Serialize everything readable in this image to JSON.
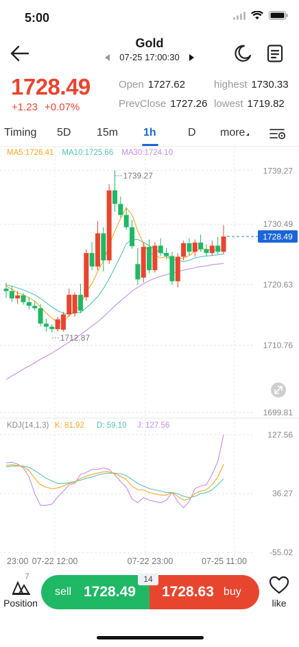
{
  "status": {
    "time": "5:00"
  },
  "header": {
    "title": "Gold",
    "datetime": "07-25 17:00:30"
  },
  "quote": {
    "price": "1728.49",
    "change": "+1.23",
    "change_pct": "+0.07%",
    "open_label": "Open",
    "open_value": "1727.62",
    "highest_label": "highest",
    "highest_value": "1730.33",
    "prevclose_label": "PrevClose",
    "prevclose_value": "1727.26",
    "lowest_label": "lowest",
    "lowest_value": "1719.82",
    "up_color": "#e8452f",
    "down_color": "#1fb865"
  },
  "tabs": [
    {
      "label": "Timing"
    },
    {
      "label": "5D"
    },
    {
      "label": "15m"
    },
    {
      "label": "1h",
      "active": true
    },
    {
      "label": "D"
    },
    {
      "label": "more"
    }
  ],
  "ma_legend": {
    "ma5": "MA5:1726.41",
    "ma10": "MA10:1725.66",
    "ma30": "MA30:1724.10",
    "ma5_color": "#f5a623",
    "ma10_color": "#4fc3b2",
    "ma30_color": "#c58be8"
  },
  "kdj_legend": {
    "name": "KDJ(14,1,3)",
    "k": "K: 81.92",
    "d": "D: 59.10",
    "j": "J: 127.56"
  },
  "bottom": {
    "position_label": "Position",
    "position_count": "7",
    "sell_label": "sell",
    "sell_price": "1728.49",
    "buy_label": "buy",
    "buy_price": "1728.63",
    "spread": "14",
    "like_label": "like"
  },
  "chart_data": {
    "type": "candlestick",
    "price_axis": {
      "ticks": [
        "1739.27",
        "1730.49",
        "1720.63",
        "1710.76",
        "1699.81"
      ],
      "ylim": [
        1699.81,
        1742.0
      ]
    },
    "current_price_label": "1728.49",
    "high_annotation": "1739.27",
    "low_annotation": "1712.87",
    "x_ticks": [
      "23:00",
      "07-22 12:00",
      "07-22 23:00",
      "07-25 11:00"
    ],
    "candles": [
      {
        "o": 1720.0,
        "h": 1721.0,
        "l": 1718.5,
        "c": 1719.6
      },
      {
        "o": 1719.6,
        "h": 1720.4,
        "l": 1717.8,
        "c": 1718.4
      },
      {
        "o": 1718.4,
        "h": 1719.6,
        "l": 1717.5,
        "c": 1718.9
      },
      {
        "o": 1718.9,
        "h": 1719.3,
        "l": 1717.4,
        "c": 1717.8
      },
      {
        "o": 1717.8,
        "h": 1718.6,
        "l": 1716.6,
        "c": 1717.2
      },
      {
        "o": 1717.2,
        "h": 1718.0,
        "l": 1716.4,
        "c": 1716.8
      },
      {
        "o": 1716.8,
        "h": 1717.5,
        "l": 1713.9,
        "c": 1714.3
      },
      {
        "o": 1714.3,
        "h": 1715.1,
        "l": 1713.0,
        "c": 1713.8
      },
      {
        "o": 1713.8,
        "h": 1714.2,
        "l": 1712.87,
        "c": 1713.4
      },
      {
        "o": 1713.4,
        "h": 1715.4,
        "l": 1713.0,
        "c": 1715.0
      },
      {
        "o": 1713.3,
        "h": 1716.2,
        "l": 1713.0,
        "c": 1715.8
      },
      {
        "o": 1715.8,
        "h": 1720.0,
        "l": 1715.4,
        "c": 1719.0
      },
      {
        "o": 1716.0,
        "h": 1719.4,
        "l": 1715.4,
        "c": 1719.0
      },
      {
        "o": 1719.0,
        "h": 1720.8,
        "l": 1716.0,
        "c": 1716.4
      },
      {
        "o": 1718.6,
        "h": 1726.4,
        "l": 1718.0,
        "c": 1725.8
      },
      {
        "o": 1725.8,
        "h": 1727.6,
        "l": 1723.0,
        "c": 1723.6
      },
      {
        "o": 1723.6,
        "h": 1731.0,
        "l": 1723.0,
        "c": 1729.0
      },
      {
        "o": 1729.0,
        "h": 1730.0,
        "l": 1722.8,
        "c": 1724.6
      },
      {
        "o": 1724.6,
        "h": 1737.0,
        "l": 1724.0,
        "c": 1736.0
      },
      {
        "o": 1736.0,
        "h": 1739.27,
        "l": 1732.5,
        "c": 1733.8
      },
      {
        "o": 1733.8,
        "h": 1735.0,
        "l": 1731.6,
        "c": 1732.0
      },
      {
        "o": 1732.0,
        "h": 1733.2,
        "l": 1729.6,
        "c": 1730.0
      },
      {
        "o": 1730.0,
        "h": 1731.2,
        "l": 1726.5,
        "c": 1726.9
      },
      {
        "o": 1724.0,
        "h": 1726.6,
        "l": 1720.6,
        "c": 1721.5
      },
      {
        "o": 1721.8,
        "h": 1727.6,
        "l": 1721.0,
        "c": 1726.8
      },
      {
        "o": 1726.8,
        "h": 1728.0,
        "l": 1722.5,
        "c": 1723.0
      },
      {
        "o": 1723.0,
        "h": 1727.6,
        "l": 1722.6,
        "c": 1727.0
      },
      {
        "o": 1727.0,
        "h": 1728.2,
        "l": 1725.3,
        "c": 1725.8
      },
      {
        "o": 1725.8,
        "h": 1726.6,
        "l": 1724.8,
        "c": 1725.3
      },
      {
        "o": 1725.3,
        "h": 1726.0,
        "l": 1720.6,
        "c": 1721.2
      },
      {
        "o": 1721.2,
        "h": 1725.8,
        "l": 1720.2,
        "c": 1725.2
      },
      {
        "o": 1725.2,
        "h": 1727.8,
        "l": 1724.6,
        "c": 1727.4
      },
      {
        "o": 1727.4,
        "h": 1728.2,
        "l": 1725.4,
        "c": 1726.0
      },
      {
        "o": 1726.0,
        "h": 1728.0,
        "l": 1725.2,
        "c": 1727.5
      },
      {
        "o": 1727.5,
        "h": 1728.8,
        "l": 1726.0,
        "c": 1726.4
      },
      {
        "o": 1726.4,
        "h": 1727.2,
        "l": 1725.2,
        "c": 1725.8
      },
      {
        "o": 1725.8,
        "h": 1727.8,
        "l": 1725.4,
        "c": 1727.0
      },
      {
        "o": 1727.0,
        "h": 1728.4,
        "l": 1725.6,
        "c": 1726.0
      },
      {
        "o": 1726.0,
        "h": 1730.33,
        "l": 1725.6,
        "c": 1728.49
      }
    ],
    "ma5": [
      1720.4,
      1719.9,
      1719.3,
      1719.0,
      1718.5,
      1718.0,
      1717.0,
      1716.0,
      1715.2,
      1714.5,
      1714.6,
      1715.6,
      1716.4,
      1717.3,
      1719.5,
      1720.8,
      1722.8,
      1724.5,
      1727.0,
      1729.4,
      1731.4,
      1733.2,
      1732.0,
      1729.4,
      1727.3,
      1725.9,
      1725.4,
      1725.0,
      1725.2,
      1724.6,
      1724.8,
      1725.0,
      1725.4,
      1726.1,
      1726.5,
      1726.4,
      1726.3,
      1726.3,
      1726.41
    ],
    "ma10": [
      1720.6,
      1720.4,
      1720.1,
      1719.8,
      1719.4,
      1719.0,
      1718.4,
      1717.7,
      1717.0,
      1716.4,
      1716.0,
      1715.9,
      1716.0,
      1716.1,
      1716.9,
      1717.7,
      1718.7,
      1720.0,
      1721.6,
      1723.4,
      1725.3,
      1727.3,
      1728.0,
      1728.0,
      1727.5,
      1727.0,
      1726.4,
      1725.9,
      1725.5,
      1724.8,
      1724.6,
      1724.4,
      1724.6,
      1725.0,
      1725.2,
      1725.3,
      1725.4,
      1725.5,
      1725.66
    ],
    "ma30": [
      1705.2,
      1705.8,
      1706.3,
      1706.9,
      1707.4,
      1707.9,
      1708.5,
      1709.0,
      1709.5,
      1710.1,
      1710.7,
      1711.3,
      1711.9,
      1712.5,
      1713.2,
      1713.9,
      1714.6,
      1715.4,
      1716.3,
      1717.2,
      1718.0,
      1718.8,
      1719.6,
      1720.2,
      1720.8,
      1721.3,
      1721.7,
      1722.0,
      1722.3,
      1722.5,
      1722.8,
      1723.0,
      1723.2,
      1723.4,
      1723.6,
      1723.7,
      1723.9,
      1724.0,
      1724.1
    ],
    "kdj": {
      "yticks": [
        "127.56",
        "36.27",
        "-55.02"
      ],
      "ylim": [
        -55.02,
        130.0
      ],
      "k": [
        80,
        81,
        80,
        78,
        72,
        60,
        50,
        46,
        44,
        45,
        48,
        52,
        54,
        60,
        63,
        66,
        68,
        70,
        70,
        67,
        63,
        58,
        48,
        42,
        42,
        38,
        36,
        34,
        34,
        38,
        32,
        26,
        28,
        36,
        40,
        42,
        50,
        62,
        81.92
      ],
      "d": [
        78,
        79,
        79,
        79,
        77,
        72,
        66,
        60,
        56,
        52,
        52,
        53,
        55,
        57,
        60,
        62,
        65,
        67,
        68,
        68,
        67,
        64,
        58,
        52,
        48,
        44,
        42,
        40,
        38,
        38,
        36,
        32,
        30,
        32,
        36,
        38,
        42,
        50,
        59.1
      ],
      "j": [
        84,
        85,
        82,
        76,
        62,
        36,
        18,
        18,
        20,
        31,
        40,
        50,
        52,
        66,
        69,
        74,
        74,
        76,
        74,
        65,
        55,
        46,
        28,
        22,
        30,
        26,
        24,
        22,
        26,
        38,
        24,
        14,
        24,
        44,
        48,
        50,
        66,
        86,
        127.56
      ]
    }
  }
}
